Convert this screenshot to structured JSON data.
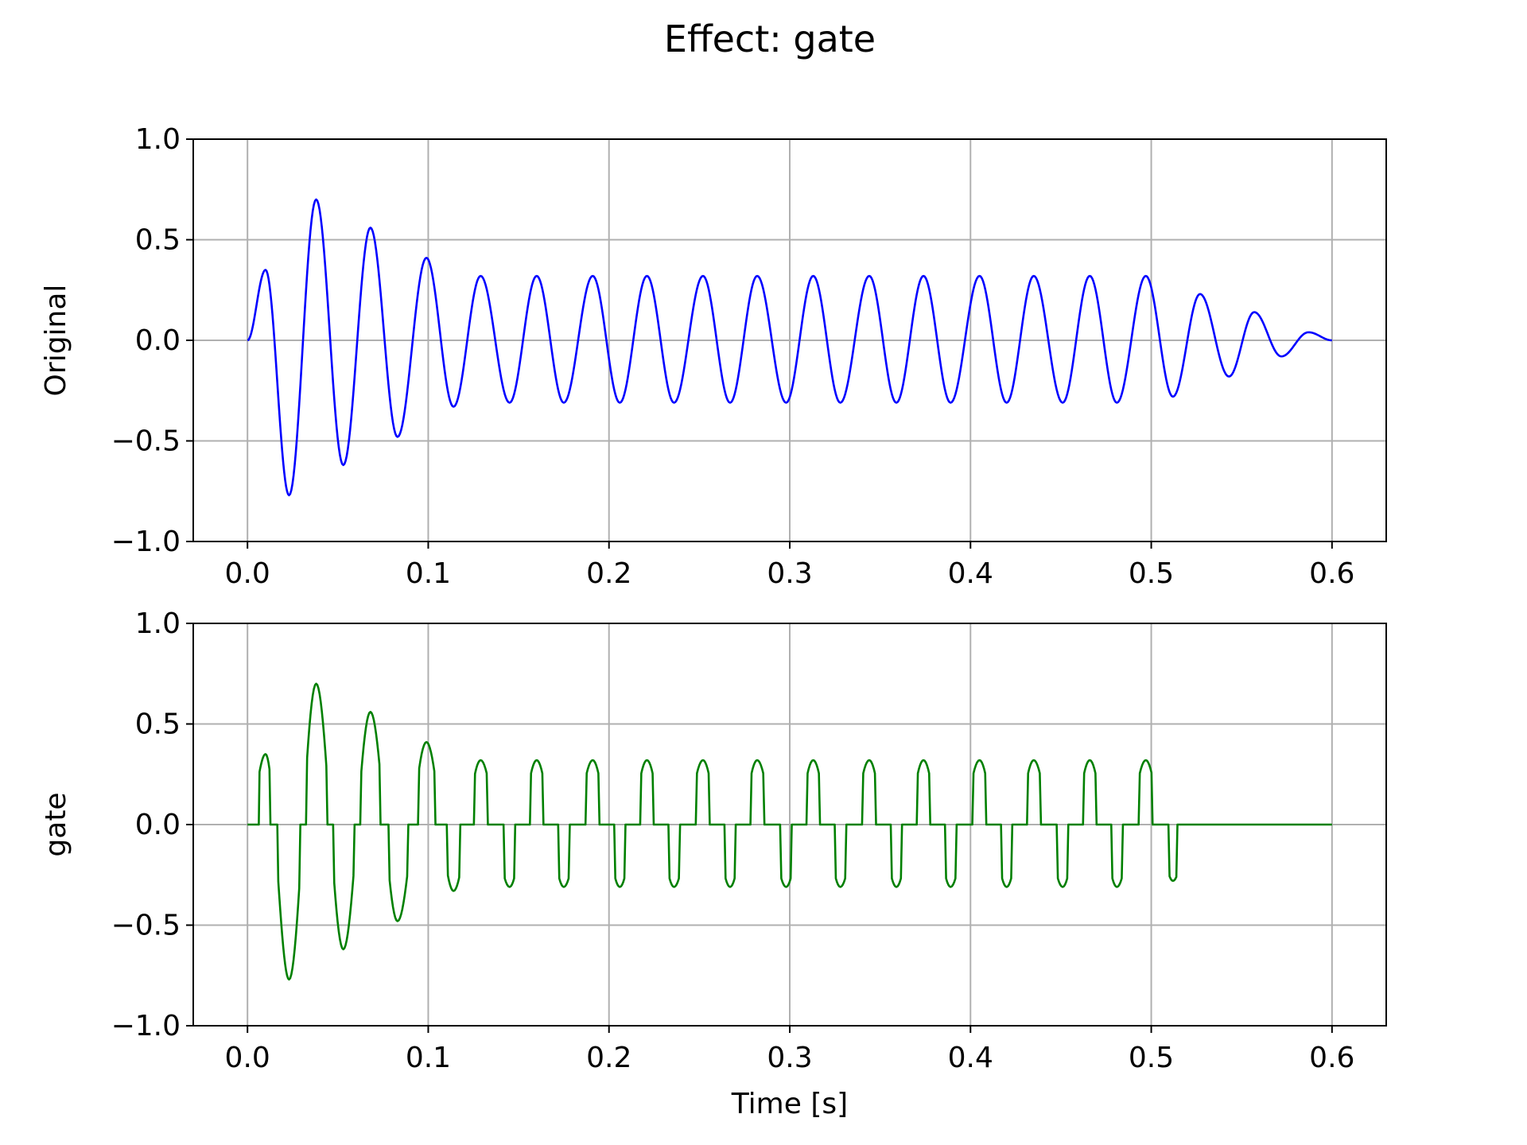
{
  "title": "Effect: gate",
  "grid_color": "#b0b0b0",
  "chart_data": [
    {
      "type": "line",
      "ylabel": "Original",
      "xlabel": "",
      "xlim": [
        -0.03,
        0.63
      ],
      "ylim": [
        -1.0,
        1.0
      ],
      "xticks": [
        0.0,
        0.1,
        0.2,
        0.3,
        0.4,
        0.5,
        0.6
      ],
      "xtick_labels": [
        "0.0",
        "0.1",
        "0.2",
        "0.3",
        "0.4",
        "0.5",
        "0.6"
      ],
      "yticks": [
        -1.0,
        -0.5,
        0.0,
        0.5,
        1.0
      ],
      "ytick_labels": [
        "−1.0",
        "−0.5",
        "0.0",
        "0.5",
        "1.0"
      ],
      "grid": true,
      "series": [
        {
          "color": "#0000ff",
          "x": [
            0.0,
            0.01,
            0.023,
            0.038,
            0.053,
            0.068,
            0.083,
            0.099,
            0.114,
            0.129,
            0.145,
            0.16,
            0.175,
            0.191,
            0.206,
            0.221,
            0.236,
            0.252,
            0.267,
            0.282,
            0.298,
            0.313,
            0.328,
            0.344,
            0.359,
            0.374,
            0.389,
            0.405,
            0.42,
            0.435,
            0.451,
            0.466,
            0.481,
            0.497,
            0.512,
            0.527,
            0.543,
            0.557,
            0.572,
            0.587,
            0.6
          ],
          "y": [
            0.0,
            0.35,
            -0.77,
            0.7,
            -0.62,
            0.56,
            -0.48,
            0.41,
            -0.33,
            0.32,
            -0.31,
            0.32,
            -0.31,
            0.32,
            -0.31,
            0.32,
            -0.31,
            0.32,
            -0.31,
            0.32,
            -0.31,
            0.32,
            -0.31,
            0.32,
            -0.31,
            0.32,
            -0.31,
            0.32,
            -0.31,
            0.32,
            -0.31,
            0.32,
            -0.31,
            0.32,
            -0.28,
            0.23,
            -0.18,
            0.14,
            -0.08,
            0.04,
            0.0
          ]
        }
      ]
    },
    {
      "type": "line",
      "ylabel": "gate",
      "xlabel": "Time [s]",
      "xlim": [
        -0.03,
        0.63
      ],
      "ylim": [
        -1.0,
        1.0
      ],
      "xticks": [
        0.0,
        0.1,
        0.2,
        0.3,
        0.4,
        0.5,
        0.6
      ],
      "xtick_labels": [
        "0.0",
        "0.1",
        "0.2",
        "0.3",
        "0.4",
        "0.5",
        "0.6"
      ],
      "yticks": [
        -1.0,
        -0.5,
        0.0,
        0.5,
        1.0
      ],
      "ytick_labels": [
        "−1.0",
        "−0.5",
        "0.0",
        "0.5",
        "1.0"
      ],
      "grid": true,
      "gate_threshold": 0.25,
      "gate_cutoff_time": 0.515,
      "series": [
        {
          "color": "#008000",
          "x": [
            0.0,
            0.01,
            0.023,
            0.038,
            0.053,
            0.068,
            0.083,
            0.099,
            0.114,
            0.129,
            0.145,
            0.16,
            0.175,
            0.191,
            0.206,
            0.221,
            0.236,
            0.252,
            0.267,
            0.282,
            0.298,
            0.313,
            0.328,
            0.344,
            0.359,
            0.374,
            0.389,
            0.405,
            0.42,
            0.435,
            0.451,
            0.466,
            0.481,
            0.497,
            0.512,
            0.527,
            0.543,
            0.557,
            0.572,
            0.587,
            0.6
          ],
          "y": [
            0.0,
            0.35,
            -0.77,
            0.7,
            -0.62,
            0.56,
            -0.48,
            0.41,
            -0.33,
            0.32,
            -0.31,
            0.32,
            -0.31,
            0.32,
            -0.31,
            0.32,
            -0.31,
            0.32,
            -0.31,
            0.32,
            -0.31,
            0.32,
            -0.31,
            0.32,
            -0.31,
            0.32,
            -0.31,
            0.32,
            -0.31,
            0.32,
            -0.31,
            0.32,
            -0.31,
            0.32,
            -0.28,
            0.0,
            0.0,
            0.0,
            0.0,
            0.0,
            0.0
          ]
        }
      ]
    }
  ]
}
